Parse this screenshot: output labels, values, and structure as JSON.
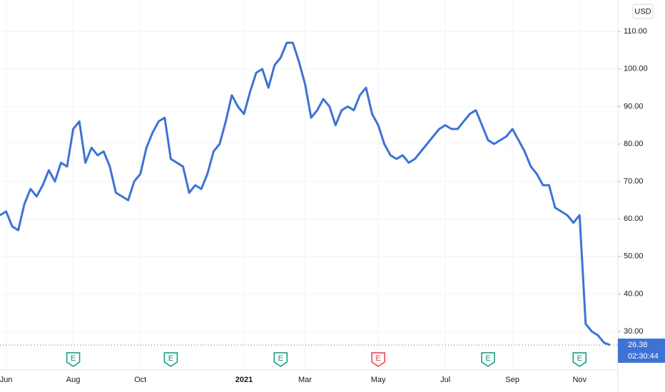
{
  "chart_data": {
    "type": "line",
    "currency": "USD",
    "countdown": "02:30:44",
    "categories": [
      null,
      "Jun",
      null,
      null,
      null,
      null,
      null,
      null,
      null,
      null,
      null,
      null,
      "Aug",
      null,
      null,
      null,
      null,
      null,
      null,
      null,
      null,
      null,
      null,
      "Oct",
      null,
      null,
      null,
      null,
      null,
      null,
      null,
      null,
      null,
      null,
      null,
      null,
      null,
      null,
      null,
      null,
      "2021",
      null,
      null,
      null,
      null,
      null,
      null,
      null,
      null,
      null,
      "Mar",
      null,
      null,
      null,
      null,
      null,
      null,
      null,
      null,
      null,
      null,
      null,
      "May",
      null,
      null,
      null,
      null,
      null,
      null,
      null,
      null,
      null,
      null,
      "Jul",
      null,
      null,
      null,
      null,
      null,
      null,
      null,
      null,
      null,
      null,
      "Sep",
      null,
      null,
      null,
      null,
      null,
      null,
      null,
      null,
      null,
      null,
      "Nov",
      null,
      null,
      null,
      null,
      null
    ],
    "series": [
      {
        "color": "#3d73d4",
        "values": [
          61,
          62,
          58,
          57,
          64,
          68,
          66,
          69,
          73,
          70,
          75,
          74,
          84,
          86,
          75,
          79,
          77,
          78,
          74,
          67,
          66,
          65,
          70,
          72,
          79,
          83,
          86,
          87,
          76,
          75,
          74,
          67,
          69,
          68,
          72,
          78,
          80,
          86,
          93,
          90,
          88,
          94,
          99,
          100,
          95,
          101,
          103,
          107,
          107,
          102,
          96,
          87,
          89,
          92,
          90,
          85,
          89,
          90,
          89,
          93,
          95,
          88,
          85,
          80,
          77,
          76,
          77,
          75,
          76,
          78,
          80,
          82,
          84,
          85,
          84,
          84,
          86,
          88,
          89,
          85,
          81,
          80,
          81,
          82,
          84,
          81,
          78,
          74,
          72,
          69,
          69,
          63,
          62,
          61,
          59,
          61,
          32,
          30,
          29,
          27,
          26.38
        ]
      }
    ],
    "ylim": [
      20.5,
      118.4
    ],
    "yticks": [
      {
        "value": 30,
        "label": "30.00"
      },
      {
        "value": 40,
        "label": "40.00"
      },
      {
        "value": 50,
        "label": "50.00"
      },
      {
        "value": 60,
        "label": "60.00"
      },
      {
        "value": 70,
        "label": "70.00"
      },
      {
        "value": 80,
        "label": "80.00"
      },
      {
        "value": 90,
        "label": "90.00"
      },
      {
        "value": 100,
        "label": "100.00"
      },
      {
        "value": 110,
        "label": "110.00"
      }
    ],
    "grid": true,
    "events": [
      {
        "label": "E",
        "at": 12,
        "color": "#089981"
      },
      {
        "label": "E",
        "at": 28,
        "color": "#089981"
      },
      {
        "label": "E",
        "at": 46,
        "color": "#089981"
      },
      {
        "label": "E",
        "at": 62,
        "color": "#f23645"
      },
      {
        "label": "E",
        "at": 80,
        "color": "#089981"
      },
      {
        "label": "E",
        "at": 95,
        "color": "#089981"
      }
    ]
  }
}
